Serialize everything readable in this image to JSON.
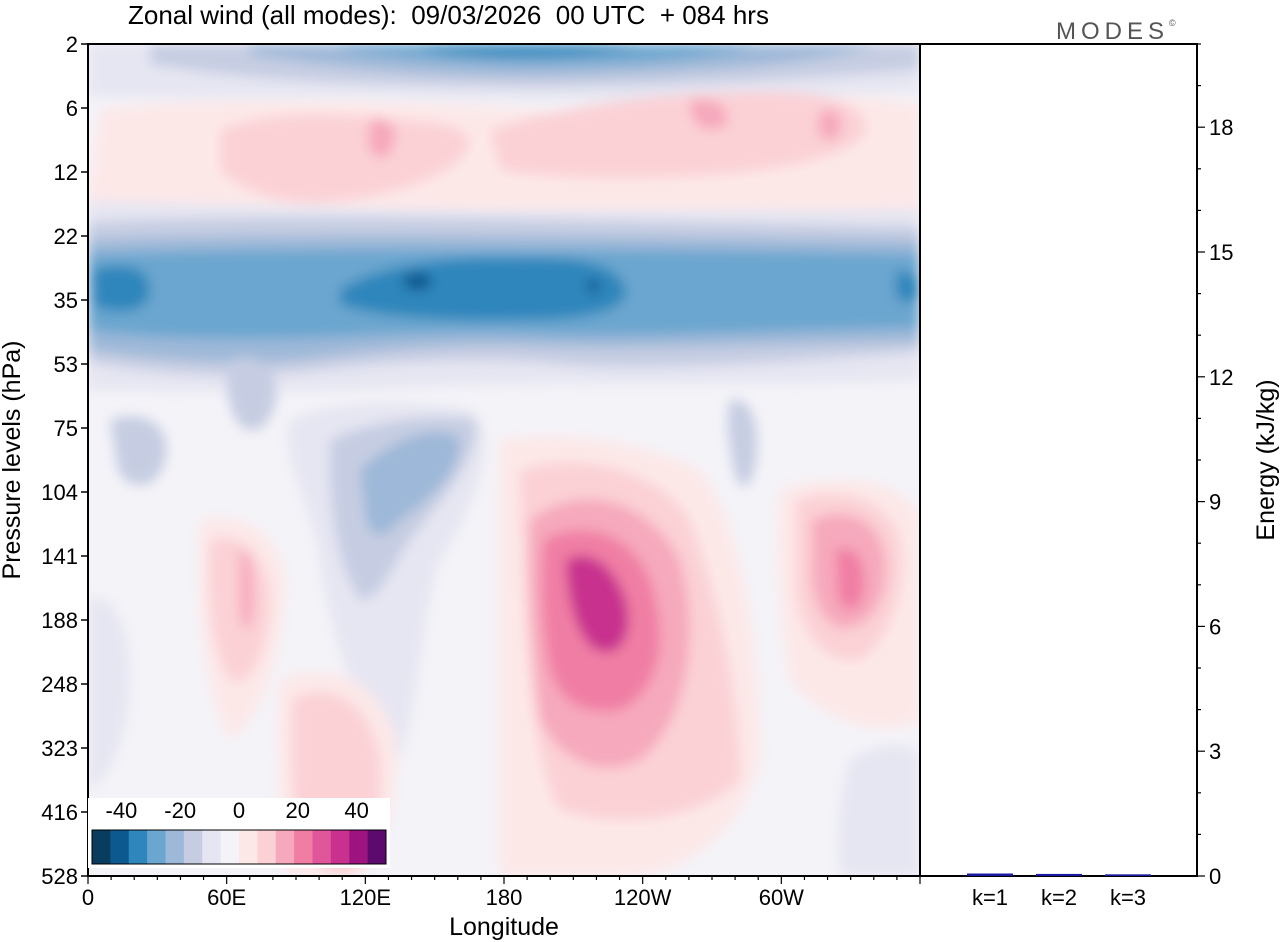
{
  "title": "Zonal wind (all modes):  09/03/2026  00 UTC  + 084 hrs",
  "logo": "MODES",
  "logo_mark": "©",
  "colors": {
    "blue5": "#0a3c5e",
    "blue4": "#0b598f",
    "blue3": "#2f86bc",
    "blue2": "#6aa6cf",
    "blue1": "#9db8d8",
    "blue0": "#c6cde2",
    "lilac": "#e6e6f2",
    "neutral": "#f4f3f8",
    "pink0": "#fde8e8",
    "pink1": "#fbd1d6",
    "pink2": "#f6a9bc",
    "pink3": "#f07ea4",
    "pink4": "#e0569b",
    "magenta": "#c8328e",
    "purple1": "#9d1481",
    "purple2": "#5c0a6e",
    "energy_bar": "#1a1aa0"
  },
  "chart_data": [
    {
      "type": "heatmap",
      "title": "Zonal wind (all modes):  09/03/2026  00 UTC  + 084 hrs",
      "xlabel": "Longitude",
      "ylabel": "Pressure levels (hPa)",
      "x_ticks": [
        "0",
        "60E",
        "120E",
        "180",
        "120W",
        "60W"
      ],
      "x_tick_values": [
        0,
        60,
        120,
        180,
        240,
        300
      ],
      "xlim": [
        0,
        360
      ],
      "y_ticks": [
        "2",
        "6",
        "12",
        "22",
        "35",
        "53",
        "75",
        "104",
        "141",
        "188",
        "248",
        "323",
        "416",
        "528"
      ],
      "colorbar": {
        "ticks": [
          "-40",
          "-20",
          "0",
          "20",
          "40"
        ],
        "tick_values": [
          -40,
          -20,
          0,
          20,
          40
        ],
        "range": [
          -50,
          50
        ],
        "step": 5
      },
      "features": [
        {
          "name": "upper easterly band",
          "level_range": [
            "2",
            "6"
          ],
          "value_min": -30
        },
        {
          "name": "stratospheric easterly jet",
          "level_range": [
            "22",
            "53"
          ],
          "value_min": -35
        },
        {
          "name": "westerly jet core",
          "longitude_range": [
            "180",
            "120W"
          ],
          "level_range": [
            "104",
            "323"
          ],
          "value_max": 35
        },
        {
          "name": "secondary westerly maximum",
          "longitude_range": [
            "60W",
            "0"
          ],
          "level_range": [
            "104",
            "248"
          ],
          "value_max": 20
        }
      ]
    },
    {
      "type": "bar",
      "ylabel": "Energy (kJ/kg)",
      "categories": [
        "k=1",
        "k=2",
        "k=3"
      ],
      "values": [
        0.06,
        0.05,
        0.04
      ],
      "y_ticks": [
        "0",
        "3",
        "6",
        "9",
        "12",
        "15",
        "18"
      ],
      "y_tick_values": [
        0,
        3,
        6,
        9,
        12,
        15,
        18
      ],
      "ylim": [
        0,
        20
      ]
    }
  ]
}
